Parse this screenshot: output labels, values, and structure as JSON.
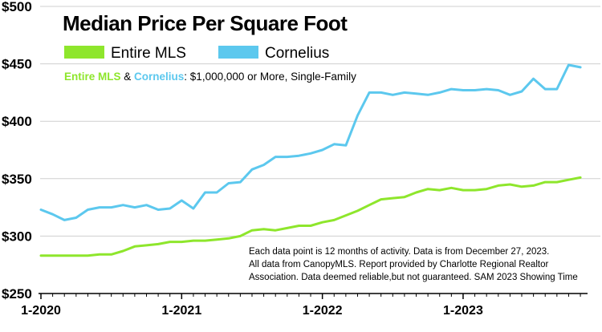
{
  "chart_data": {
    "type": "line",
    "title": "Median Price Per Square Foot",
    "subtitle": {
      "part1": "Entire MLS",
      "part2": " & ",
      "part3": "Cornelius",
      "part4": ": $1,000,000 or More, Single-Family"
    },
    "x_tick_labels": [
      "1-2020",
      "1-2021",
      "1-2022",
      "1-2023"
    ],
    "x_tick_index": [
      0,
      12,
      24,
      36
    ],
    "y_tick_labels": [
      "$500",
      "$450",
      "$400",
      "$350",
      "$300",
      "$250"
    ],
    "y_tick_values": [
      500,
      450,
      400,
      350,
      300,
      250
    ],
    "ylim": [
      250,
      500
    ],
    "grid": "horizontal",
    "legend_position": "top",
    "series": [
      {
        "name": "Entire MLS",
        "color": "#8ee62c",
        "values": [
          283,
          283,
          283,
          283,
          283,
          284,
          284,
          287,
          291,
          292,
          293,
          295,
          295,
          296,
          296,
          297,
          298,
          300,
          305,
          306,
          305,
          307,
          309,
          309,
          312,
          314,
          318,
          322,
          327,
          332,
          333,
          334,
          338,
          341,
          340,
          342,
          340,
          340,
          341,
          344,
          345,
          343,
          344,
          347,
          347,
          349,
          351
        ]
      },
      {
        "name": "Cornelius",
        "color": "#5cc8ee",
        "values": [
          323,
          319,
          314,
          316,
          323,
          325,
          325,
          327,
          325,
          327,
          323,
          324,
          331,
          324,
          338,
          338,
          346,
          347,
          358,
          362,
          369,
          369,
          370,
          372,
          375,
          380,
          379,
          405,
          425,
          425,
          423,
          425,
          424,
          423,
          425,
          428,
          427,
          427,
          428,
          427,
          423,
          426,
          437,
          428,
          428,
          449,
          447
        ]
      }
    ],
    "footnote": [
      "Each data point is 12 months of activity. Data is from December 27, 2023.",
      "All data from CanopyMLS. Report provided by Charlotte Regional Realtor",
      "Association. Data deemed reliable,but not guaranteed. SAM 2023 Showing Time"
    ]
  }
}
